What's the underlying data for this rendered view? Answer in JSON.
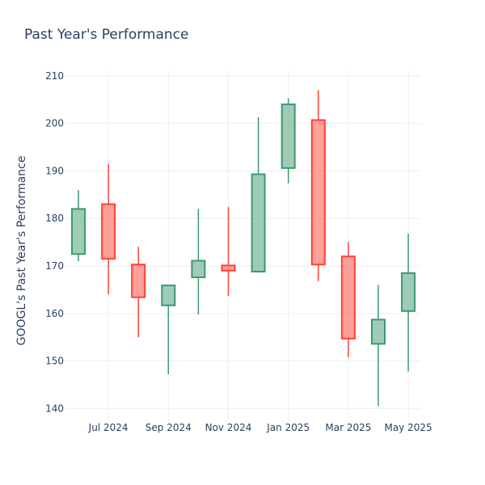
{
  "chart_data": {
    "type": "candlestick",
    "title": "Past Year's Performance",
    "xlabel": "",
    "ylabel": "GOOGL's Past Year's Performance",
    "ylim": [
      137.5,
      211
    ],
    "y_ticks": [
      140,
      150,
      160,
      170,
      180,
      190,
      200,
      210
    ],
    "x_tick_labels": [
      "Jul 2024",
      "Sep 2024",
      "Nov 2024",
      "Jan 2025",
      "Mar 2025",
      "May 2025"
    ],
    "grid": true,
    "legend": "none",
    "colors": {
      "increasing": "#3d9970",
      "decreasing": "#ff4136",
      "grid": "#eeeeee",
      "tick_text": "#2a3f5f"
    },
    "candles": [
      {
        "month": "2024-06",
        "open": 172.5,
        "high": 186.0,
        "low": 171.0,
        "close": 182.0
      },
      {
        "month": "2024-07",
        "open": 183.0,
        "high": 191.5,
        "low": 164.0,
        "close": 171.5
      },
      {
        "month": "2024-08",
        "open": 170.3,
        "high": 174.0,
        "low": 155.0,
        "close": 163.4
      },
      {
        "month": "2024-09",
        "open": 161.7,
        "high": 165.9,
        "low": 147.2,
        "close": 165.9
      },
      {
        "month": "2024-10",
        "open": 167.6,
        "high": 182.0,
        "low": 159.8,
        "close": 171.1
      },
      {
        "month": "2024-11",
        "open": 170.1,
        "high": 182.4,
        "low": 163.7,
        "close": 169.0
      },
      {
        "month": "2024-12",
        "open": 168.8,
        "high": 201.3,
        "low": 168.8,
        "close": 189.3
      },
      {
        "month": "2025-01",
        "open": 190.6,
        "high": 205.3,
        "low": 187.4,
        "close": 204.0
      },
      {
        "month": "2025-02",
        "open": 200.7,
        "high": 207.0,
        "low": 166.8,
        "close": 170.3
      },
      {
        "month": "2025-03",
        "open": 172.0,
        "high": 175.0,
        "low": 150.8,
        "close": 154.7
      },
      {
        "month": "2025-04",
        "open": 153.6,
        "high": 166.0,
        "low": 140.5,
        "close": 158.7
      },
      {
        "month": "2025-05",
        "open": 160.5,
        "high": 176.8,
        "low": 147.8,
        "close": 168.5
      }
    ]
  }
}
